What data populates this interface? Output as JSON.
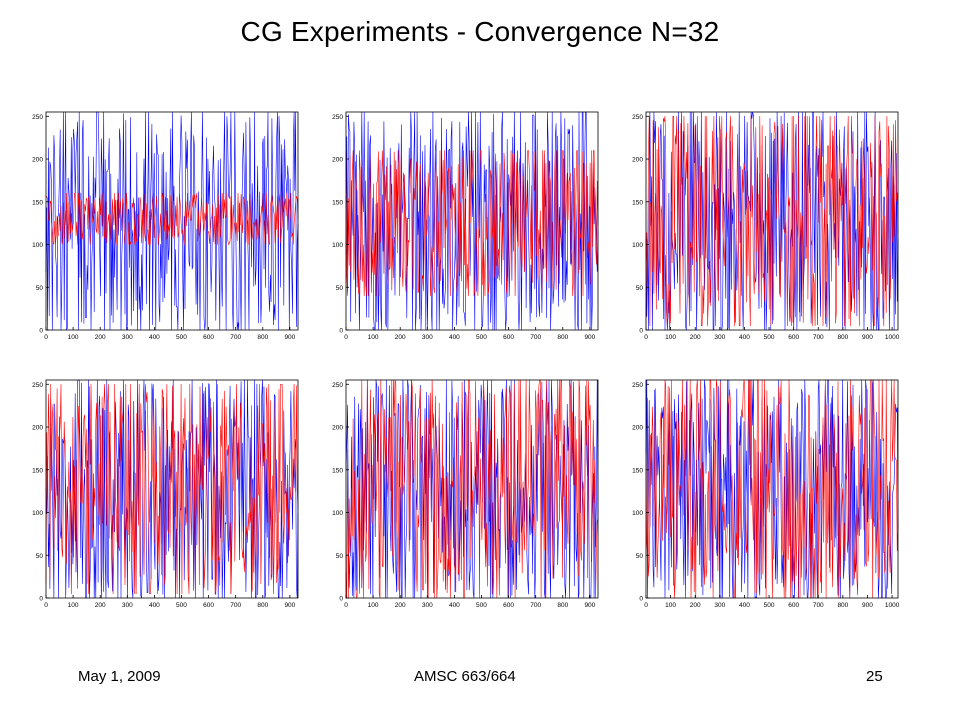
{
  "slide": {
    "title": "CG Experiments - Convergence N=32",
    "footer_date": "May 1, 2009",
    "footer_course": "AMSC 663/664",
    "footer_page": "25"
  },
  "colors": {
    "original_series": "#0000ff",
    "reconstruction_series": "#ff0000"
  },
  "chart_data": [
    {
      "type": "line",
      "grid": false,
      "xlim": [
        0,
        930
      ],
      "ylim": [
        0,
        255
      ],
      "xticks": [
        0,
        100,
        200,
        300,
        400,
        500,
        600,
        700,
        800,
        900
      ],
      "yticks": [
        0,
        50,
        100,
        150,
        200,
        250
      ],
      "series": [
        {
          "color": "blue",
          "approx_range": [
            0,
            255
          ],
          "approx_mean": 125
        },
        {
          "color": "red",
          "approx_range": [
            100,
            160
          ],
          "approx_mean": 130
        }
      ]
    },
    {
      "type": "line",
      "grid": false,
      "xlim": [
        0,
        930
      ],
      "ylim": [
        0,
        255
      ],
      "xticks": [
        0,
        100,
        200,
        300,
        400,
        500,
        600,
        700,
        800,
        900
      ],
      "yticks": [
        0,
        50,
        100,
        150,
        200,
        250
      ],
      "series": [
        {
          "color": "blue",
          "approx_range": [
            0,
            255
          ],
          "approx_mean": 125
        },
        {
          "color": "red",
          "approx_range": [
            40,
            210
          ],
          "approx_mean": 130
        }
      ]
    },
    {
      "type": "line",
      "grid": false,
      "xlim": [
        0,
        1024
      ],
      "ylim": [
        0,
        255
      ],
      "xticks": [
        0,
        100,
        200,
        300,
        400,
        500,
        600,
        700,
        800,
        900,
        1000
      ],
      "yticks": [
        0,
        50,
        100,
        150,
        200,
        250
      ],
      "series": [
        {
          "color": "blue",
          "approx_range": [
            0,
            255
          ],
          "approx_mean": 125
        },
        {
          "color": "red",
          "approx_range": [
            5,
            250
          ],
          "approx_mean": 130
        }
      ]
    },
    {
      "type": "line",
      "grid": false,
      "xlim": [
        0,
        930
      ],
      "ylim": [
        0,
        255
      ],
      "xticks": [
        0,
        100,
        200,
        300,
        400,
        500,
        600,
        700,
        800,
        900
      ],
      "yticks": [
        0,
        50,
        100,
        150,
        200,
        250
      ],
      "series": [
        {
          "color": "blue",
          "approx_range": [
            0,
            255
          ],
          "approx_mean": 125
        },
        {
          "color": "red",
          "approx_range": [
            5,
            250
          ],
          "approx_mean": 130
        }
      ]
    },
    {
      "type": "line",
      "grid": false,
      "xlim": [
        0,
        930
      ],
      "ylim": [
        0,
        255
      ],
      "xticks": [
        0,
        100,
        200,
        300,
        400,
        500,
        600,
        700,
        800,
        900
      ],
      "yticks": [
        0,
        50,
        100,
        150,
        200,
        250
      ],
      "series": [
        {
          "color": "blue",
          "approx_range": [
            0,
            255
          ],
          "approx_mean": 125
        },
        {
          "color": "red",
          "approx_range": [
            0,
            255
          ],
          "approx_mean": 128
        }
      ]
    },
    {
      "type": "line",
      "grid": false,
      "xlim": [
        0,
        1024
      ],
      "ylim": [
        0,
        255
      ],
      "xticks": [
        0,
        100,
        200,
        300,
        400,
        500,
        600,
        700,
        800,
        900,
        1000
      ],
      "yticks": [
        0,
        50,
        100,
        150,
        200,
        250
      ],
      "series": [
        {
          "color": "blue",
          "approx_range": [
            0,
            255
          ],
          "approx_mean": 125
        },
        {
          "color": "red",
          "approx_range": [
            0,
            255
          ],
          "approx_mean": 128
        }
      ]
    }
  ]
}
